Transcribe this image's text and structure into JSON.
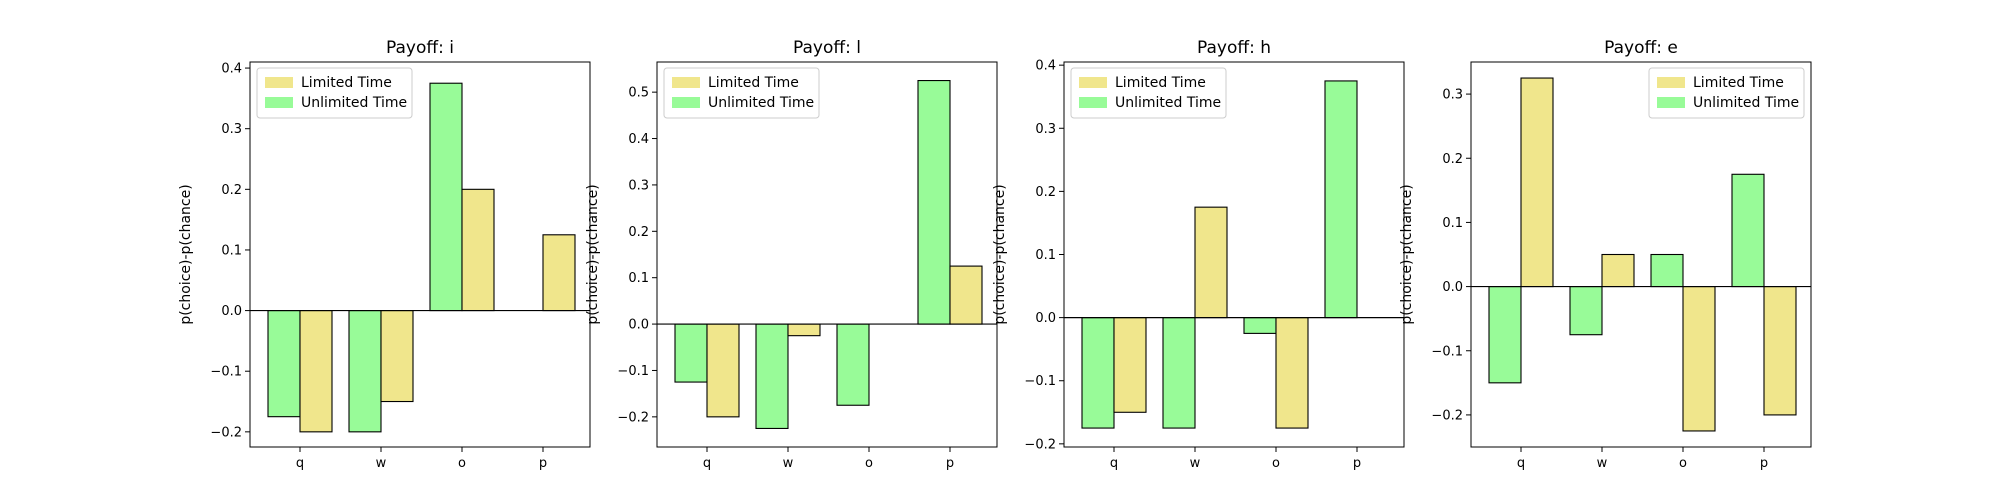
{
  "chart_data": [
    {
      "type": "bar",
      "title": "Payoff: i",
      "ylabel": "p(choice)-p(chance)",
      "xlabel": "",
      "categories": [
        "q",
        "w",
        "o",
        "p"
      ],
      "ylim": [
        -0.225,
        0.41
      ],
      "yticks": [
        -0.2,
        -0.1,
        0.0,
        0.1,
        0.2,
        0.3,
        0.4
      ],
      "ytick_labels": [
        "−0.2",
        "−0.1",
        "0.0",
        "0.1",
        "0.2",
        "0.3",
        "0.4"
      ],
      "legend_position": "top-left",
      "series": [
        {
          "name": "Unlimited Time",
          "values": [
            -0.175,
            -0.2,
            0.375,
            0.0
          ]
        },
        {
          "name": "Limited Time",
          "values": [
            -0.2,
            -0.15,
            0.2,
            0.125
          ]
        }
      ]
    },
    {
      "type": "bar",
      "title": "Payoff: l",
      "ylabel": "p(choice)-p(chance)",
      "xlabel": "",
      "categories": [
        "q",
        "w",
        "o",
        "p"
      ],
      "ylim": [
        -0.265,
        0.565
      ],
      "yticks": [
        -0.2,
        -0.1,
        0.0,
        0.1,
        0.2,
        0.3,
        0.4,
        0.5
      ],
      "ytick_labels": [
        "−0.2",
        "−0.1",
        "0.0",
        "0.1",
        "0.2",
        "0.3",
        "0.4",
        "0.5"
      ],
      "legend_position": "top-left",
      "series": [
        {
          "name": "Unlimited Time",
          "values": [
            -0.125,
            -0.225,
            -0.175,
            0.525
          ]
        },
        {
          "name": "Limited Time",
          "values": [
            -0.2,
            -0.025,
            0.0,
            0.125
          ]
        }
      ]
    },
    {
      "type": "bar",
      "title": "Payoff: h",
      "ylabel": "p(choice)-p(chance)",
      "xlabel": "",
      "categories": [
        "q",
        "w",
        "o",
        "p"
      ],
      "ylim": [
        -0.205,
        0.405
      ],
      "yticks": [
        -0.2,
        -0.1,
        0.0,
        0.1,
        0.2,
        0.3,
        0.4
      ],
      "ytick_labels": [
        "−0.2",
        "−0.1",
        "0.0",
        "0.1",
        "0.2",
        "0.3",
        "0.4"
      ],
      "legend_position": "top-left",
      "series": [
        {
          "name": "Unlimited Time",
          "values": [
            -0.175,
            -0.175,
            -0.025,
            0.375
          ]
        },
        {
          "name": "Limited Time",
          "values": [
            -0.15,
            0.175,
            -0.175,
            0.0
          ]
        }
      ]
    },
    {
      "type": "bar",
      "title": "Payoff: e",
      "ylabel": "p(choice)-p(chance)",
      "xlabel": "",
      "categories": [
        "q",
        "w",
        "o",
        "p"
      ],
      "ylim": [
        -0.25,
        0.35
      ],
      "yticks": [
        -0.2,
        -0.1,
        0.0,
        0.1,
        0.2,
        0.3
      ],
      "ytick_labels": [
        "−0.2",
        "−0.1",
        "0.0",
        "0.1",
        "0.2",
        "0.3"
      ],
      "legend_position": "top-right",
      "series": [
        {
          "name": "Unlimited Time",
          "values": [
            -0.15,
            -0.075,
            0.05,
            0.175
          ]
        },
        {
          "name": "Limited Time",
          "values": [
            0.325,
            0.05,
            -0.225,
            -0.2
          ]
        }
      ]
    }
  ],
  "colors": {
    "Limited Time": "#f0e68c",
    "Unlimited Time": "#98fb98",
    "edge": "#000000",
    "background": "#ffffff"
  },
  "legend_order": [
    "Limited Time",
    "Unlimited Time"
  ]
}
